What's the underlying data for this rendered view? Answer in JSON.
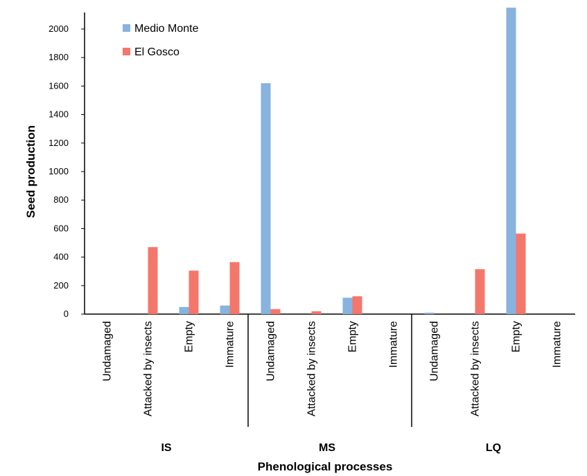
{
  "chart_data": {
    "type": "bar",
    "xlabel": "Phenological processes",
    "ylabel": "Seed production",
    "ylim": [
      0,
      2100
    ],
    "yticks": [
      0,
      200,
      400,
      600,
      800,
      1000,
      1200,
      1400,
      1600,
      1800,
      2000
    ],
    "grid": false,
    "legend_position": "top-left",
    "groups": [
      {
        "label": "IS",
        "categories": [
          "Undamaged",
          "Attacked by insects",
          "Empty",
          "Immature"
        ]
      },
      {
        "label": "MS",
        "categories": [
          "Undamaged",
          "Attacked by insects",
          "Empty",
          "Immature"
        ]
      },
      {
        "label": "LQ",
        "categories": [
          "Undamaged",
          "Attacked by insects",
          "Empty",
          "Immature"
        ]
      }
    ],
    "series": [
      {
        "name": "Medio Monte",
        "color": "#87b3de",
        "values": [
          0,
          0,
          50,
          60,
          1620,
          0,
          115,
          0,
          10,
          0,
          2150,
          0
        ]
      },
      {
        "name": "El Gosco",
        "color": "#f4776b",
        "values": [
          0,
          470,
          305,
          365,
          35,
          20,
          125,
          0,
          0,
          315,
          565,
          0
        ]
      }
    ]
  }
}
